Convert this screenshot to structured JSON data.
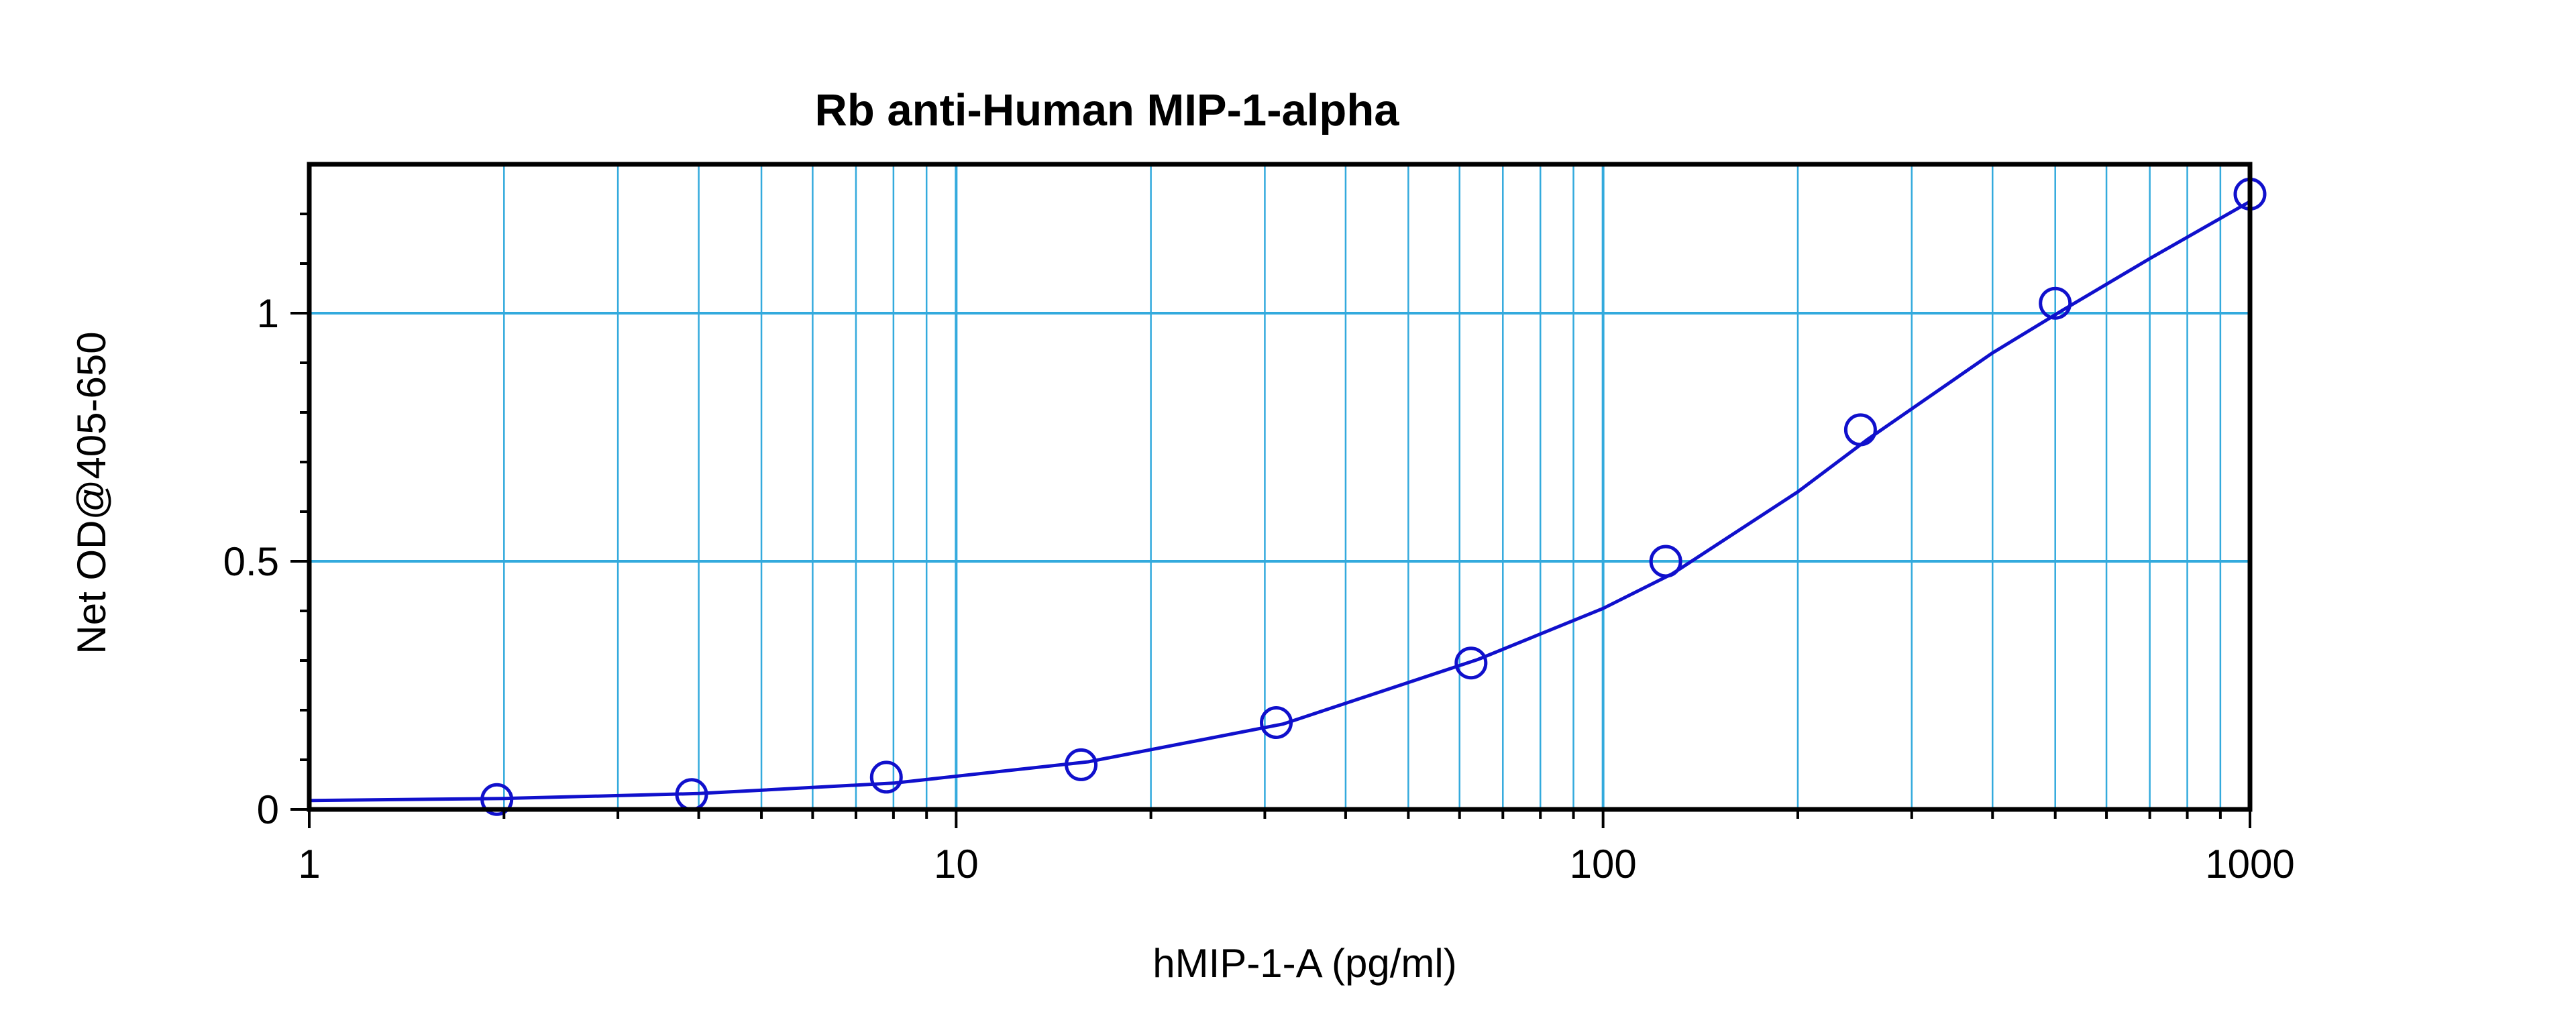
{
  "chart_data": {
    "type": "scatter",
    "title": "Rb anti-Human MIP-1-alpha",
    "xlabel": "hMIP-1-A (pg/ml)",
    "ylabel": "Net OD@405-650",
    "x_scale": "log",
    "xlim": [
      1,
      1000
    ],
    "ylim": [
      0,
      1.3
    ],
    "x_ticks": [
      {
        "value": 1,
        "label": "1"
      },
      {
        "value": 10,
        "label": "10"
      },
      {
        "value": 100,
        "label": "100"
      },
      {
        "value": 1000,
        "label": "1000"
      }
    ],
    "y_ticks": [
      {
        "value": 0,
        "label": "0"
      },
      {
        "value": 0.5,
        "label": "0.5"
      },
      {
        "value": 1,
        "label": "1"
      }
    ],
    "grid": true,
    "series": [
      {
        "type": "scatter",
        "x": [
          1.95,
          3.9,
          7.8,
          15.6,
          31.25,
          62.5,
          125,
          250,
          500,
          1000
        ],
        "y": [
          0.02,
          0.03,
          0.065,
          0.09,
          0.175,
          0.295,
          0.5,
          0.765,
          1.02,
          1.24
        ]
      },
      {
        "type": "line",
        "x": [
          1,
          2,
          4,
          8,
          16,
          32,
          64,
          100,
          128,
          200,
          256,
          400,
          512,
          700,
          1000
        ],
        "y": [
          0.018,
          0.022,
          0.032,
          0.053,
          0.096,
          0.172,
          0.302,
          0.405,
          0.475,
          0.64,
          0.745,
          0.92,
          1.005,
          1.11,
          1.225
        ]
      }
    ],
    "colors": {
      "series": "#1010cc",
      "grid": "#33aadd",
      "frame": "#000000"
    }
  }
}
